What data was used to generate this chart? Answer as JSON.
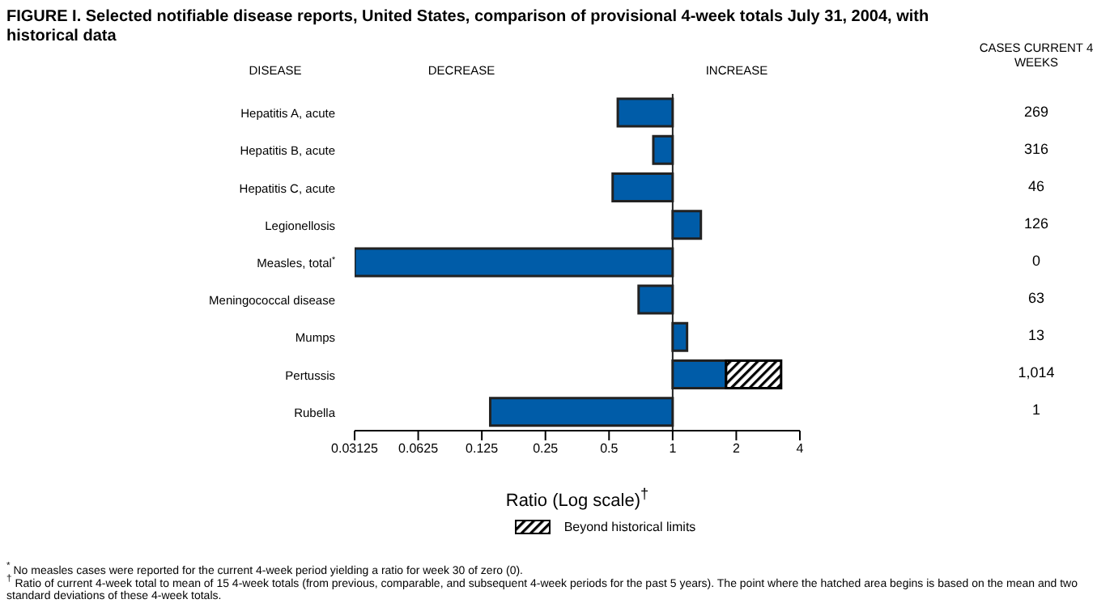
{
  "chart_data": {
    "type": "bar",
    "orientation": "horizontal",
    "log": "x",
    "title": "FIGURE I. Selected notifiable disease reports, United States, comparison of provisional 4-week totals July 31, 2004, with historical data",
    "xlabel": "Ratio (Log scale)$^{†}$",
    "categories": [
      "Hepatitis A, acute",
      "Hepatitis B, acute",
      "Hepatitis C, acute",
      "Legionellosis",
      "Measles, total$^{*}$",
      "Meningococcal disease",
      "Mumps",
      "Pertussis",
      "Rubella"
    ],
    "series": [
      {
        "color": "#005ca8",
        "base": [
          1,
          1,
          1,
          1,
          1,
          1,
          1,
          1,
          1
        ],
        "values": [
          -0.45,
          -0.19,
          -0.48,
          0.36,
          -0.96875,
          -0.31,
          0.17,
          0.79,
          -0.863
        ]
      },
      {
        "name": "Beyond historical limits",
        "color": "#000000",
        "base": [
          null,
          null,
          null,
          null,
          null,
          null,
          null,
          1.79,
          null
        ],
        "values": [
          null,
          null,
          null,
          null,
          null,
          null,
          null,
          1.47,
          null
        ]
      }
    ],
    "xlim": [
      0.03125,
      4
    ],
    "xticks": [
      0.03125,
      0.0625,
      0.125,
      0.25,
      0.5,
      1,
      2,
      4
    ],
    "ref_lines": [
      {
        "axis": "x",
        "value": 1,
        "color": "#222222"
      }
    ],
    "grid": false,
    "legend": "bottom",
    "annotations": [
      "DISEASE",
      "DECREASE",
      "INCREASE",
      "CASES CURRENT 4 WEEKS",
      "269",
      "316",
      "46",
      "126",
      "0",
      "63",
      "13",
      "1,014",
      "1",
      "$^{*}$ No measles cases were reported for the current 4-week period yielding a ratio for week 30 of zero (0).",
      "$^{†}$ Ratio of current 4-week total to mean of 15 4-week totals (from previous, comparable, and subsequent 4-week periods for the past 5 years). The point where the hatched area begins is based on the mean and two standard deviations of these 4-week totals."
    ]
  }
}
